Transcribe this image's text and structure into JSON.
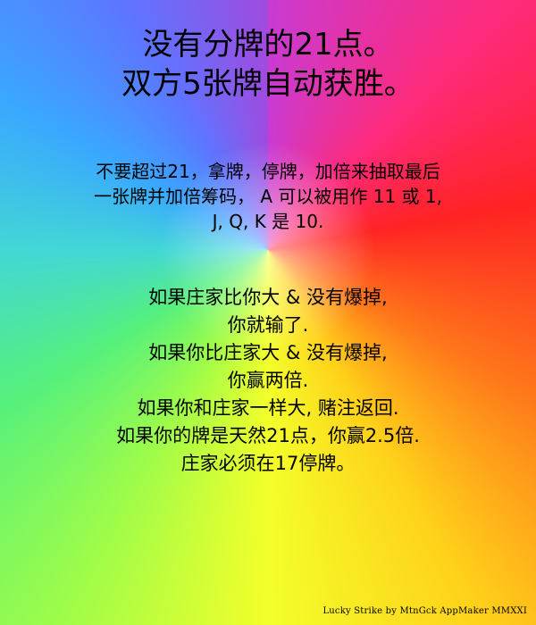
{
  "title": {
    "line1": "没有分牌的21点。",
    "line2": "双方5张牌自动获胜。"
  },
  "rules": {
    "block1": {
      "line1": "不要超过21，拿牌，停牌，加倍来抽取最后",
      "line2": "一张牌并加倍筹码，  A 可以被用作 11 或 1,",
      "line3": "J, Q, K 是 10."
    },
    "block2": {
      "line1": "如果庄家比你大 & 没有爆掉,",
      "line2": "你就输了.",
      "line3": "如果你比庄家大 & 没有爆掉,",
      "line4": "你赢两倍.",
      "line5": "如果你和庄家一样大, 赌注返回.",
      "line6": "如果你的牌是天然21点，你赢2.5倍.",
      "line7": "庄家必须在17停牌。"
    }
  },
  "footer": {
    "credit": "Lucky Strike  by MtnGck  AppMaker MMXXI"
  },
  "colors": {
    "text": "#000000",
    "bg_center": "#ffffff",
    "bg_hues": [
      "#c93bd3",
      "#ff2a7a",
      "#ff2323",
      "#ff7a1a",
      "#ffd21a",
      "#f3ff2a",
      "#9dfc4a",
      "#55f07d",
      "#42d7d6",
      "#3aa7ff",
      "#5e74ff",
      "#a04bdf"
    ]
  }
}
